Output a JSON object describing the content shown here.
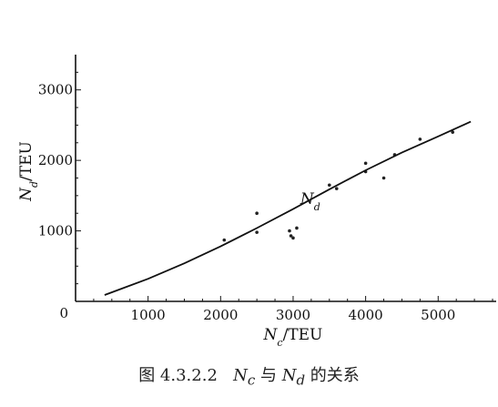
{
  "chart_data": {
    "type": "scatter",
    "xlabel_main": "N",
    "xlabel_sub": "c",
    "xlabel_unit": "/TEU",
    "ylabel_main": "N",
    "ylabel_sub": "d",
    "ylabel_unit": "/TEU",
    "xlim": [
      0,
      5800
    ],
    "ylim": [
      0,
      3500
    ],
    "x_ticks": [
      1000,
      2000,
      3000,
      4000,
      5000
    ],
    "y_ticks": [
      1000,
      2000,
      3000
    ],
    "origin_label": "0",
    "series": [
      {
        "type": "scatter",
        "points": [
          [
            2050,
            870
          ],
          [
            2500,
            1250
          ],
          [
            2500,
            980
          ],
          [
            2950,
            1000
          ],
          [
            2970,
            930
          ],
          [
            3000,
            900
          ],
          [
            3050,
            1040
          ],
          [
            3500,
            1650
          ],
          [
            3600,
            1600
          ],
          [
            4000,
            1960
          ],
          [
            4000,
            1840
          ],
          [
            4250,
            1750
          ],
          [
            4400,
            2080
          ],
          [
            4750,
            2300
          ],
          [
            5200,
            2400
          ]
        ]
      },
      {
        "type": "line",
        "x": [
          400,
          1000,
          1500,
          2000,
          2500,
          3000,
          3500,
          4000,
          4500,
          5000,
          5450
        ],
        "y": [
          90,
          320,
          540,
          780,
          1040,
          1310,
          1590,
          1860,
          2110,
          2340,
          2550
        ]
      }
    ],
    "curve_label_main": "N",
    "curve_label_sub": "d",
    "curve_label_at": [
      3100,
      1380
    ],
    "grid": false
  },
  "caption": {
    "prefix": "图 4.3.2.2",
    "n1": "N",
    "s1": "c",
    "mid": "与",
    "n2": "N",
    "s2": "d",
    "suffix": "的关系"
  }
}
